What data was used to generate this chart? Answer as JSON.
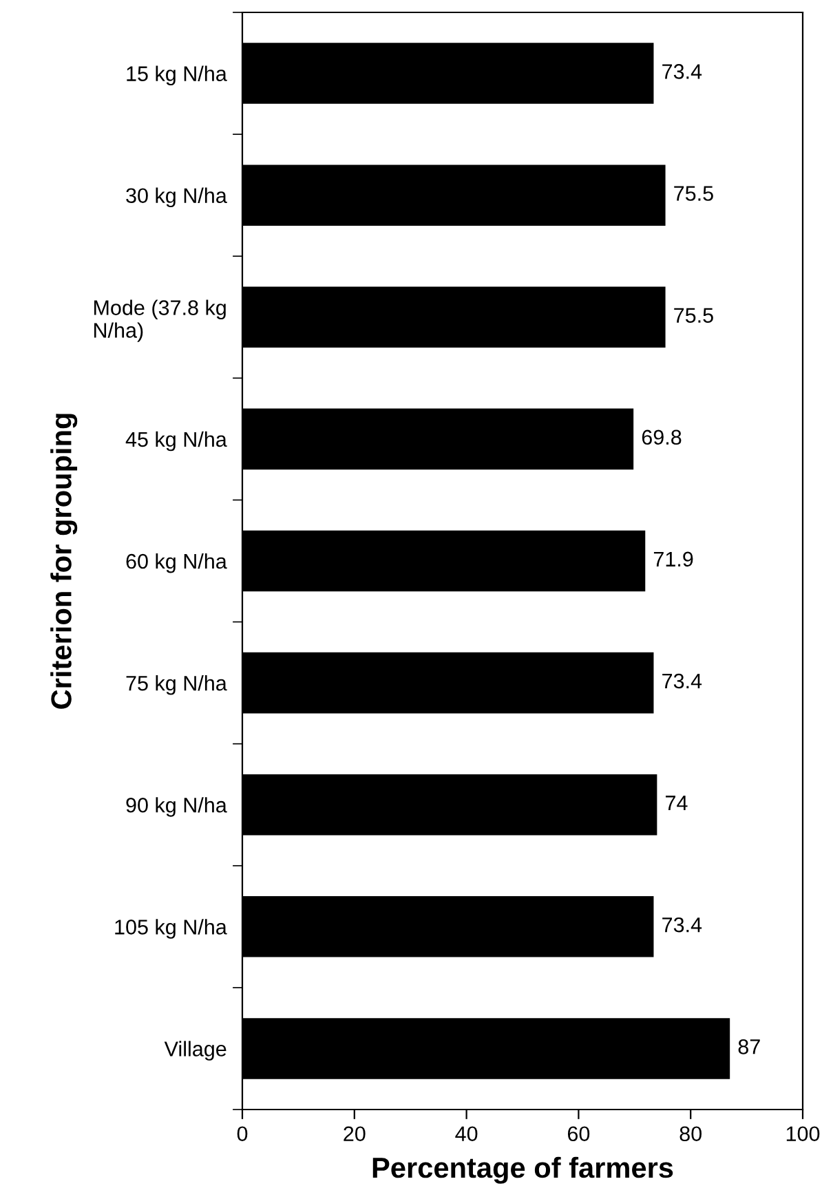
{
  "chart_data": {
    "type": "bar",
    "orientation": "horizontal",
    "xlabel": "Percentage of farmers",
    "ylabel": "Criterion for grouping",
    "categories": [
      "15 kg N/ha",
      "30 kg N/ha",
      "Mode (37.8 kg\nN/ha)",
      "45 kg N/ha",
      "60 kg N/ha",
      "75 kg N/ha",
      "90 kg N/ha",
      "105 kg N/ha",
      "Village"
    ],
    "values": [
      73.4,
      75.5,
      75.5,
      69.8,
      71.9,
      73.4,
      74,
      73.4,
      87
    ],
    "color": "#000000",
    "xlim": [
      0,
      100
    ],
    "xticks": [
      0,
      20,
      40,
      60,
      80,
      100
    ],
    "data_labels": true,
    "grid": false
  }
}
